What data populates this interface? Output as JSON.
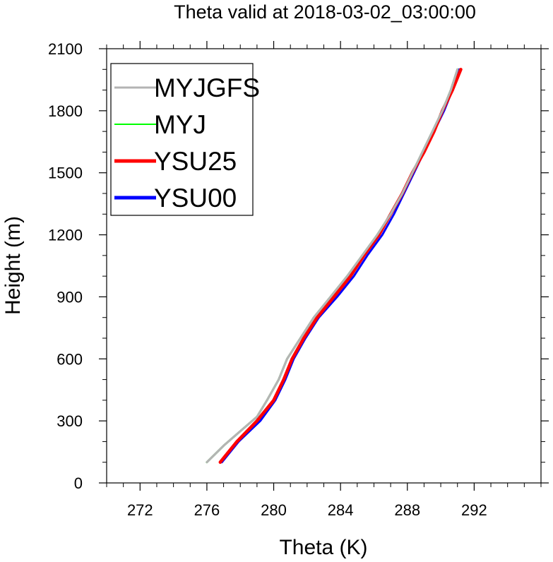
{
  "chart_data": {
    "type": "line",
    "title": "Theta valid at 2018-03-02_03:00:00",
    "xlabel": "Theta (K)",
    "ylabel": "Height (m)",
    "xlim": [
      270,
      296
    ],
    "ylim": [
      0,
      2100
    ],
    "xticks": [
      272,
      276,
      280,
      284,
      288,
      292
    ],
    "yticks": [
      0,
      300,
      600,
      900,
      1200,
      1500,
      1800,
      2100
    ],
    "xminor_step": 1,
    "yminor_step": 100,
    "grid": false,
    "legend": {
      "position": "top-left"
    },
    "series": [
      {
        "name": "MYJGFS",
        "color": "#b4b4b4",
        "points": [
          [
            276.0,
            100
          ],
          [
            277.0,
            180
          ],
          [
            278.0,
            250
          ],
          [
            279.0,
            320
          ],
          [
            279.6,
            400
          ],
          [
            280.3,
            500
          ],
          [
            280.8,
            600
          ],
          [
            281.6,
            700
          ],
          [
            282.4,
            800
          ],
          [
            283.4,
            900
          ],
          [
            284.4,
            1000
          ],
          [
            285.3,
            1100
          ],
          [
            286.2,
            1200
          ],
          [
            287.0,
            1300
          ],
          [
            287.7,
            1400
          ],
          [
            288.3,
            1500
          ],
          [
            288.9,
            1600
          ],
          [
            289.5,
            1700
          ],
          [
            290.1,
            1800
          ],
          [
            290.6,
            1900
          ],
          [
            291.0,
            2000
          ]
        ]
      },
      {
        "name": "MYJ",
        "color": "#00ff00",
        "points": [
          [
            276.0,
            100
          ],
          [
            277.0,
            180
          ],
          [
            278.0,
            250
          ],
          [
            279.0,
            320
          ],
          [
            279.6,
            400
          ],
          [
            280.3,
            500
          ],
          [
            280.8,
            600
          ],
          [
            281.6,
            700
          ],
          [
            282.4,
            800
          ],
          [
            283.4,
            900
          ],
          [
            284.4,
            1000
          ],
          [
            285.3,
            1100
          ],
          [
            286.2,
            1200
          ],
          [
            287.0,
            1300
          ],
          [
            287.7,
            1400
          ],
          [
            288.3,
            1500
          ],
          [
            288.9,
            1600
          ],
          [
            289.5,
            1700
          ],
          [
            290.1,
            1800
          ],
          [
            290.6,
            1900
          ],
          [
            291.0,
            2000
          ]
        ]
      },
      {
        "name": "YSU25",
        "color": "#ff0000",
        "points": [
          [
            276.8,
            100
          ],
          [
            277.8,
            200
          ],
          [
            279.0,
            300
          ],
          [
            280.0,
            400
          ],
          [
            280.6,
            500
          ],
          [
            281.1,
            600
          ],
          [
            281.8,
            700
          ],
          [
            282.6,
            800
          ],
          [
            283.6,
            900
          ],
          [
            284.6,
            1000
          ],
          [
            285.4,
            1100
          ],
          [
            286.3,
            1200
          ],
          [
            287.0,
            1300
          ],
          [
            287.7,
            1400
          ],
          [
            288.3,
            1500
          ],
          [
            289.0,
            1600
          ],
          [
            289.6,
            1700
          ],
          [
            290.1,
            1800
          ],
          [
            290.7,
            1900
          ],
          [
            291.2,
            2000
          ]
        ]
      },
      {
        "name": "YSU00",
        "color": "#0000ff",
        "points": [
          [
            276.9,
            100
          ],
          [
            277.9,
            200
          ],
          [
            279.2,
            300
          ],
          [
            280.1,
            400
          ],
          [
            280.7,
            500
          ],
          [
            281.2,
            600
          ],
          [
            281.9,
            700
          ],
          [
            282.7,
            800
          ],
          [
            283.8,
            900
          ],
          [
            284.8,
            1000
          ],
          [
            285.6,
            1100
          ],
          [
            286.5,
            1200
          ],
          [
            287.2,
            1300
          ],
          [
            287.8,
            1400
          ],
          [
            288.4,
            1500
          ],
          [
            289.0,
            1600
          ],
          [
            289.6,
            1700
          ],
          [
            290.2,
            1800
          ],
          [
            290.7,
            1900
          ],
          [
            291.1,
            2000
          ]
        ]
      }
    ]
  }
}
